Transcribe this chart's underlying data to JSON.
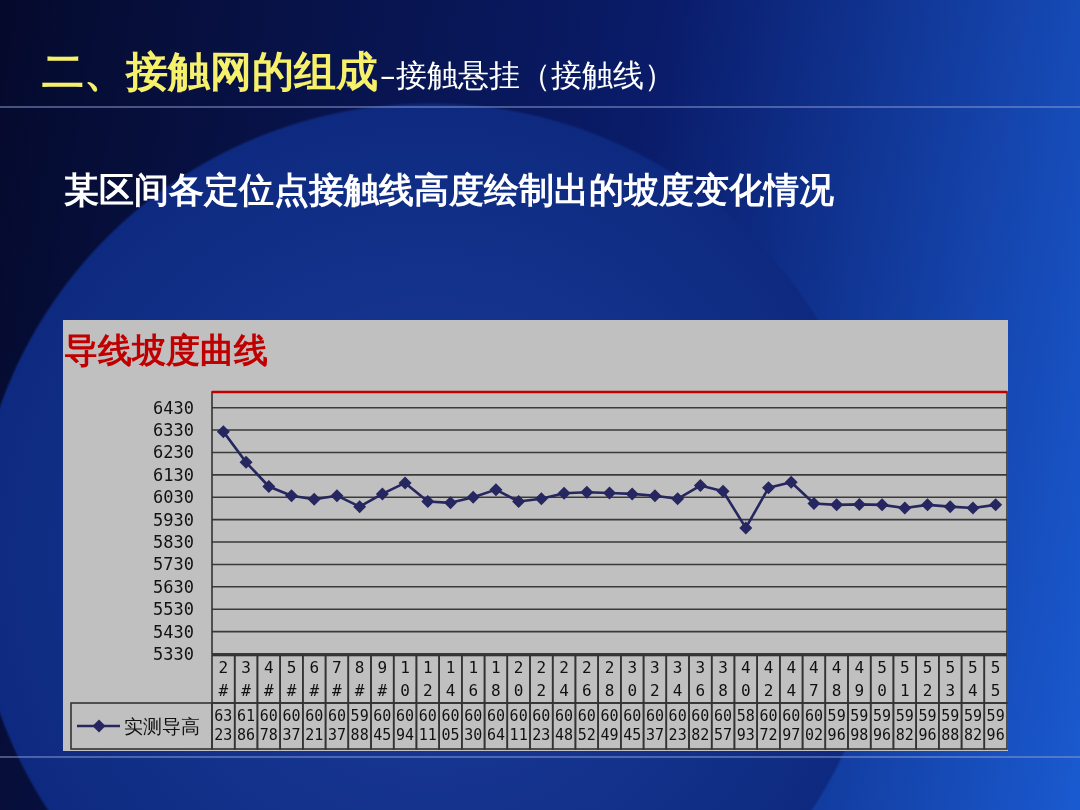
{
  "chart_data": {
    "type": "line",
    "title": "导线坡度曲线",
    "subtitle": "某区间各定位点接触线高度绘制出的坡度变化情况",
    "annotations": [
      "二、接触网的组成",
      "–接触悬挂（接触线）"
    ],
    "categories": [
      "2#",
      "3#",
      "4#",
      "5#",
      "6#",
      "7#",
      "8#",
      "9#",
      "10",
      "12",
      "14",
      "16",
      "18",
      "20",
      "22",
      "24",
      "26",
      "28",
      "30",
      "32",
      "34",
      "36",
      "38",
      "40",
      "42",
      "44",
      "47",
      "48",
      "49",
      "50",
      "51",
      "52",
      "53",
      "54",
      "55"
    ],
    "series": [
      {
        "name": "实测导高",
        "color": "#262660",
        "values": [
          6323,
          6186,
          6078,
          6037,
          6021,
          6037,
          5988,
          6045,
          6094,
          6011,
          6005,
          6030,
          6064,
          6011,
          6023,
          6048,
          6052,
          6049,
          6045,
          6037,
          6023,
          6082,
          6057,
          5893,
          6072,
          6097,
          6002,
          5996,
          5998,
          5996,
          5982,
          5996,
          5988,
          5982,
          5996
        ]
      }
    ],
    "data_labels": true,
    "ylim": [
      5330,
      6500
    ],
    "yticks": [
      5330,
      5430,
      5530,
      5630,
      5730,
      5830,
      5930,
      6030,
      6130,
      6230,
      6330,
      6430
    ],
    "ref_lines": [
      {
        "axis": "y",
        "value": 6500,
        "color": "#c00000"
      }
    ],
    "grid": "y",
    "legend": "bottom",
    "marker": "diamond",
    "line_style": "solid"
  }
}
